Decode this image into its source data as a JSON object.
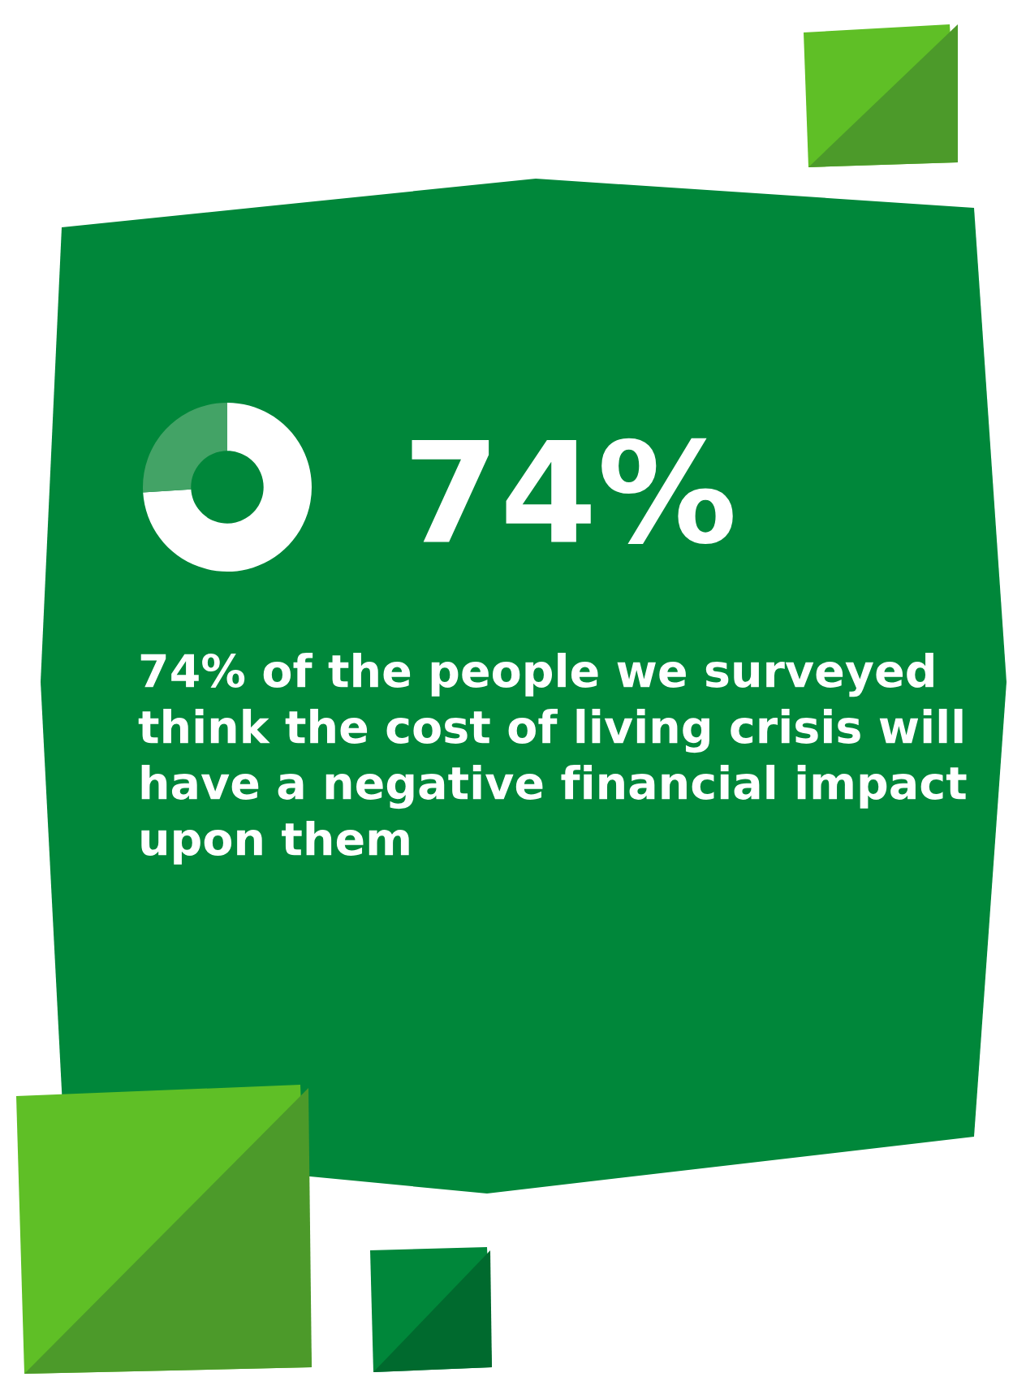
{
  "chart_data": {
    "type": "donut",
    "title": "74%",
    "categories": [
      null,
      null
    ],
    "values": [
      74,
      26
    ],
    "colors": [
      "#ffffff",
      "#43a366"
    ],
    "annotations": [
      "74% of the people we surveyed think the cost of living crisis will have a negative financial impact upon them"
    ]
  }
}
